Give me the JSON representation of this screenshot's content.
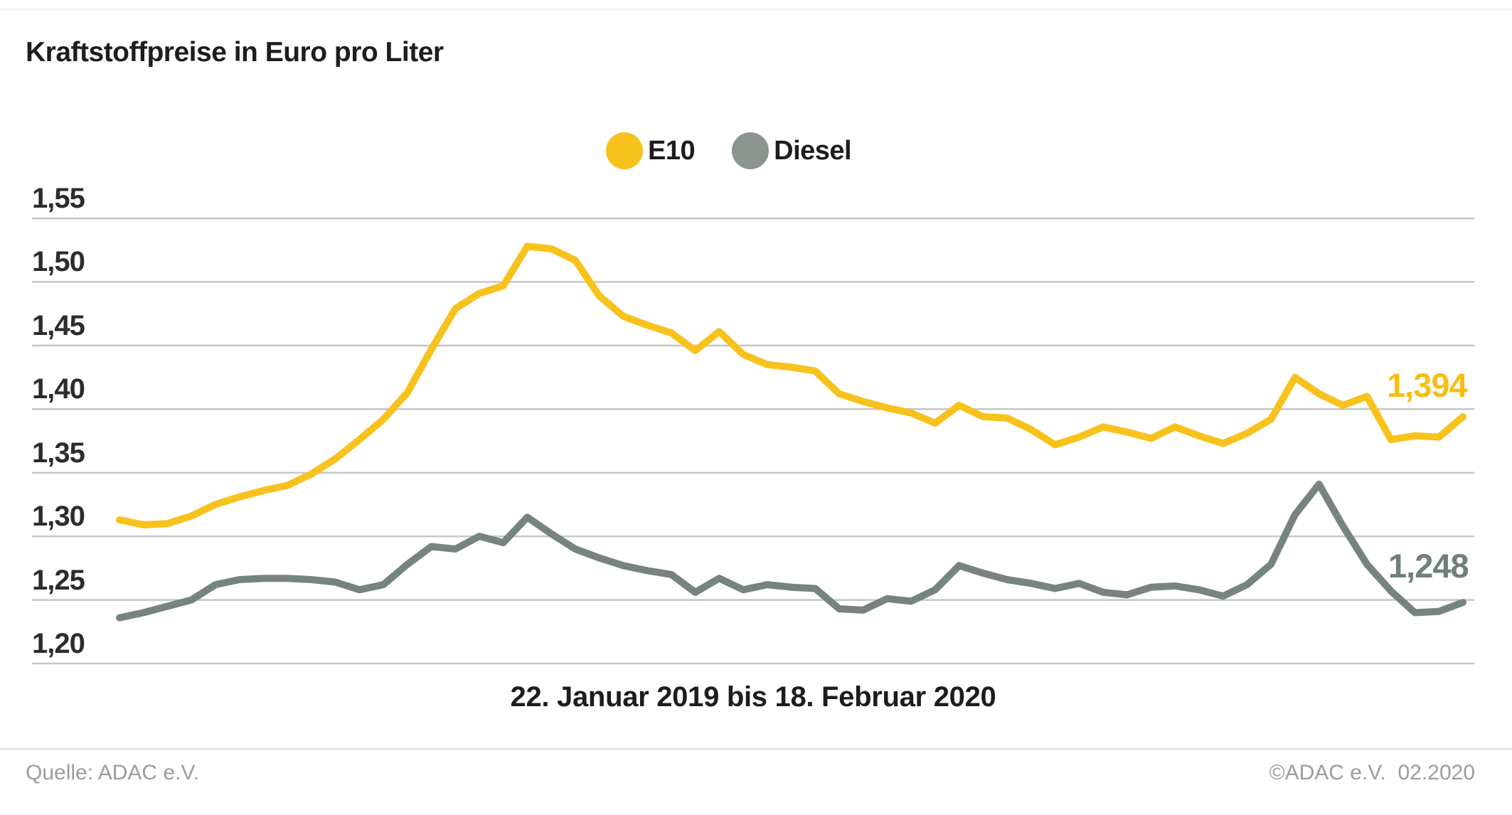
{
  "title": "Kraftstoffpreise in Euro pro Liter",
  "legend": {
    "items": [
      {
        "label": "E10",
        "color": "#F8C21D"
      },
      {
        "label": "Diesel",
        "color": "#8B948F"
      }
    ]
  },
  "footer": {
    "source": "Quelle: ADAC e.V.",
    "copyright": "©ADAC e.V.  02.2020"
  },
  "chart_data": {
    "type": "line",
    "title": "Kraftstoffpreise in Euro pro Liter",
    "x_caption": "22. Januar 2019 bis 18. Februar 2020",
    "xlabel": "",
    "ylabel": "Euro pro Liter",
    "ylim": [
      1.2,
      1.55
    ],
    "grid": true,
    "legend_position": "top-center",
    "yticks": [
      {
        "value": 1.55,
        "label": "1,55"
      },
      {
        "value": 1.5,
        "label": "1,50"
      },
      {
        "value": 1.45,
        "label": "1,45"
      },
      {
        "value": 1.4,
        "label": "1,40"
      },
      {
        "value": 1.35,
        "label": "1,35"
      },
      {
        "value": 1.3,
        "label": "1,30"
      },
      {
        "value": 1.25,
        "label": "1,25"
      },
      {
        "value": 1.2,
        "label": "1,20"
      }
    ],
    "x_note": "57 weekly values from 22.01.2019 to 18.02.2020",
    "series": [
      {
        "name": "E10",
        "color": "#F8C21D",
        "end_label": "1,394",
        "end_label_color": "#F5BE14",
        "values": [
          1.313,
          1.309,
          1.31,
          1.316,
          1.325,
          1.331,
          1.336,
          1.34,
          1.349,
          1.361,
          1.376,
          1.392,
          1.413,
          1.447,
          1.479,
          1.491,
          1.497,
          1.528,
          1.526,
          1.517,
          1.489,
          1.473,
          1.466,
          1.46,
          1.446,
          1.461,
          1.443,
          1.435,
          1.433,
          1.43,
          1.412,
          1.406,
          1.401,
          1.397,
          1.389,
          1.403,
          1.394,
          1.393,
          1.384,
          1.372,
          1.378,
          1.386,
          1.382,
          1.377,
          1.386,
          1.379,
          1.373,
          1.381,
          1.392,
          1.425,
          1.412,
          1.403,
          1.41,
          1.376,
          1.379,
          1.378,
          1.394
        ]
      },
      {
        "name": "Diesel",
        "color": "#76847E",
        "end_label": "1,248",
        "end_label_color": "#6F7F79",
        "values": [
          1.236,
          1.24,
          1.245,
          1.25,
          1.262,
          1.266,
          1.267,
          1.267,
          1.266,
          1.264,
          1.258,
          1.262,
          1.278,
          1.292,
          1.29,
          1.3,
          1.295,
          1.315,
          1.302,
          1.29,
          1.283,
          1.277,
          1.273,
          1.27,
          1.256,
          1.267,
          1.258,
          1.262,
          1.26,
          1.259,
          1.243,
          1.242,
          1.251,
          1.249,
          1.258,
          1.277,
          1.271,
          1.266,
          1.263,
          1.259,
          1.263,
          1.256,
          1.254,
          1.26,
          1.261,
          1.258,
          1.253,
          1.262,
          1.278,
          1.317,
          1.341,
          1.308,
          1.278,
          1.257,
          1.24,
          1.241,
          1.248
        ]
      }
    ]
  }
}
